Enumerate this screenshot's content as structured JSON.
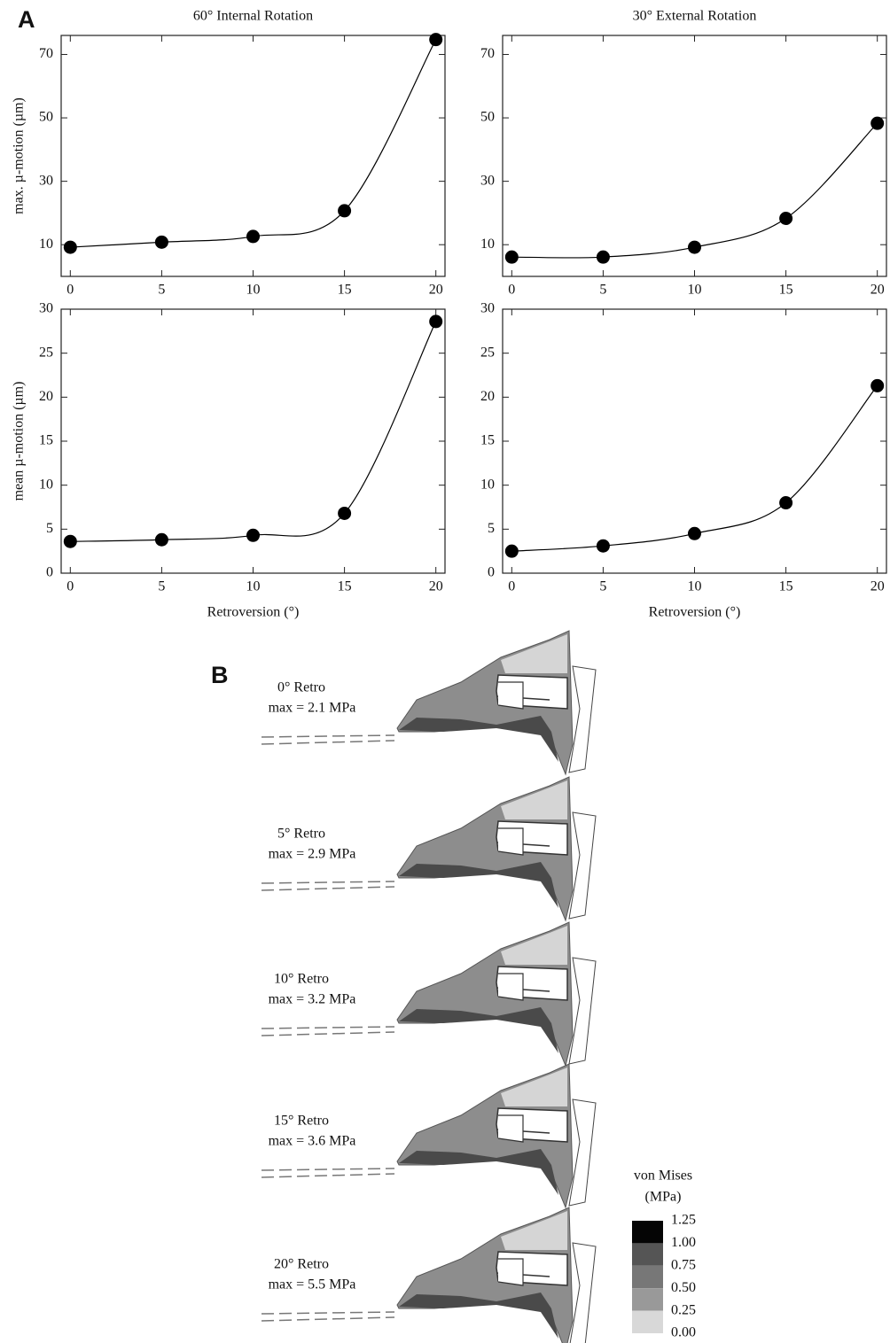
{
  "panel_label": "A",
  "chart_data": [
    {
      "type": "scatter",
      "title": "60° Internal Rotation",
      "ylabel": "max. µ-motion (µm)",
      "line": true,
      "color": "#000000",
      "x": [
        0,
        5,
        10,
        15,
        20
      ],
      "values": [
        9.2,
        10.8,
        12.6,
        20.7,
        74.7
      ],
      "xlim": [
        -0.5,
        20.5
      ],
      "xticks": [
        0,
        5,
        10,
        15,
        20
      ],
      "ylim": [
        0,
        76
      ],
      "yticks": [
        10,
        30,
        50,
        70
      ]
    },
    {
      "type": "scatter",
      "title": "30° External Rotation",
      "line": true,
      "color": "#000000",
      "x": [
        0,
        5,
        10,
        15,
        20
      ],
      "values": [
        6.1,
        6.1,
        9.2,
        18.3,
        48.3
      ],
      "xlim": [
        -0.5,
        20.5
      ],
      "xticks": [
        0,
        5,
        10,
        15,
        20
      ],
      "ylim": [
        0,
        76
      ],
      "yticks": [
        10,
        30,
        50,
        70
      ]
    },
    {
      "type": "scatter",
      "ylabel": "mean µ-motion (µm)",
      "xlabel": "Retroversion (°)",
      "line": true,
      "color": "#000000",
      "x": [
        0,
        5,
        10,
        15,
        20
      ],
      "values": [
        3.6,
        3.8,
        4.3,
        6.8,
        28.6
      ],
      "xlim": [
        -0.5,
        20.5
      ],
      "xticks": [
        0,
        5,
        10,
        15,
        20
      ],
      "ylim": [
        0,
        30
      ],
      "yticks": [
        0,
        5,
        10,
        15,
        20,
        25,
        30
      ]
    },
    {
      "type": "scatter",
      "xlabel": "Retroversion (°)",
      "line": true,
      "color": "#000000",
      "x": [
        0,
        5,
        10,
        15,
        20
      ],
      "values": [
        2.5,
        3.1,
        4.5,
        8.0,
        21.3
      ],
      "xlim": [
        -0.5,
        20.5
      ],
      "xticks": [
        0,
        5,
        10,
        15,
        20
      ],
      "ylim": [
        0,
        30
      ],
      "yticks": [
        0,
        5,
        10,
        15,
        20,
        25,
        30
      ]
    }
  ],
  "panel_b": {
    "label": "B",
    "cases": [
      {
        "title": "0° Retro",
        "max": "max = 2.1 MPa"
      },
      {
        "title": "5° Retro",
        "max": "max = 2.9 MPa"
      },
      {
        "title": "10° Retro",
        "max": "max = 3.2 MPa"
      },
      {
        "title": "15° Retro",
        "max": "max = 3.6 MPa"
      },
      {
        "title": "20° Retro",
        "max": "max = 5.5 MPa"
      }
    ],
    "legend": {
      "title": [
        "von Mises",
        "(MPa)"
      ],
      "labels": [
        "1.25",
        "1.00",
        "0.75",
        "0.50",
        "0.25",
        "0.00"
      ],
      "colors": [
        "#050505",
        "#555555",
        "#777777",
        "#999999",
        "#d8d8d8"
      ]
    }
  }
}
